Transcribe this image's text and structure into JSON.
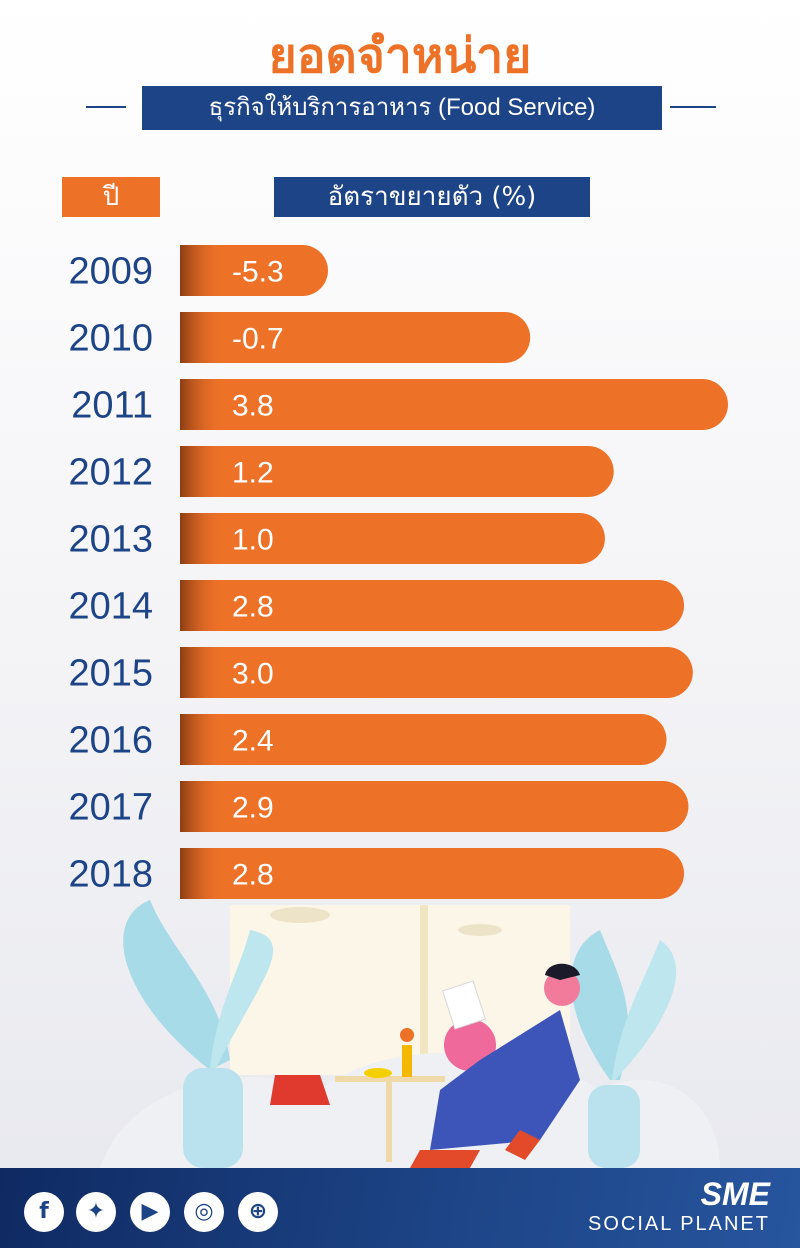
{
  "header": {
    "title": "ยอดจำหน่าย",
    "subtitle": "ธุรกิจให้บริการอาหาร (Food Service)",
    "year_header": "ปี",
    "rate_header": "อัตราขยายตัว (%)"
  },
  "chart_data": {
    "type": "bar",
    "orientation": "horizontal",
    "categories": [
      "2009",
      "2010",
      "2011",
      "2012",
      "2013",
      "2014",
      "2015",
      "2016",
      "2017",
      "2018"
    ],
    "values": [
      -5.3,
      -0.7,
      3.8,
      1.2,
      1.0,
      2.8,
      3.0,
      2.4,
      2.9,
      2.8
    ],
    "value_labels": [
      "-5.3",
      "-0.7",
      "3.8",
      "1.2",
      "1.0",
      "2.8",
      "3.0",
      "2.4",
      "2.9",
      "2.8"
    ],
    "bar_color": "#ee7128",
    "title": "ยอดจำหน่าย",
    "xlabel": "อัตราขยายตัว (%)",
    "ylabel": "ปี"
  },
  "footer": {
    "icons": [
      "facebook-icon",
      "twitter-icon",
      "youtube-icon",
      "instagram-icon",
      "globe-icon"
    ],
    "brand_top": "SME",
    "brand_bottom": "SOCIAL PLANET"
  },
  "colors": {
    "orange": "#ee7128",
    "navy": "#1d4486",
    "year_text": "#1d4486"
  }
}
